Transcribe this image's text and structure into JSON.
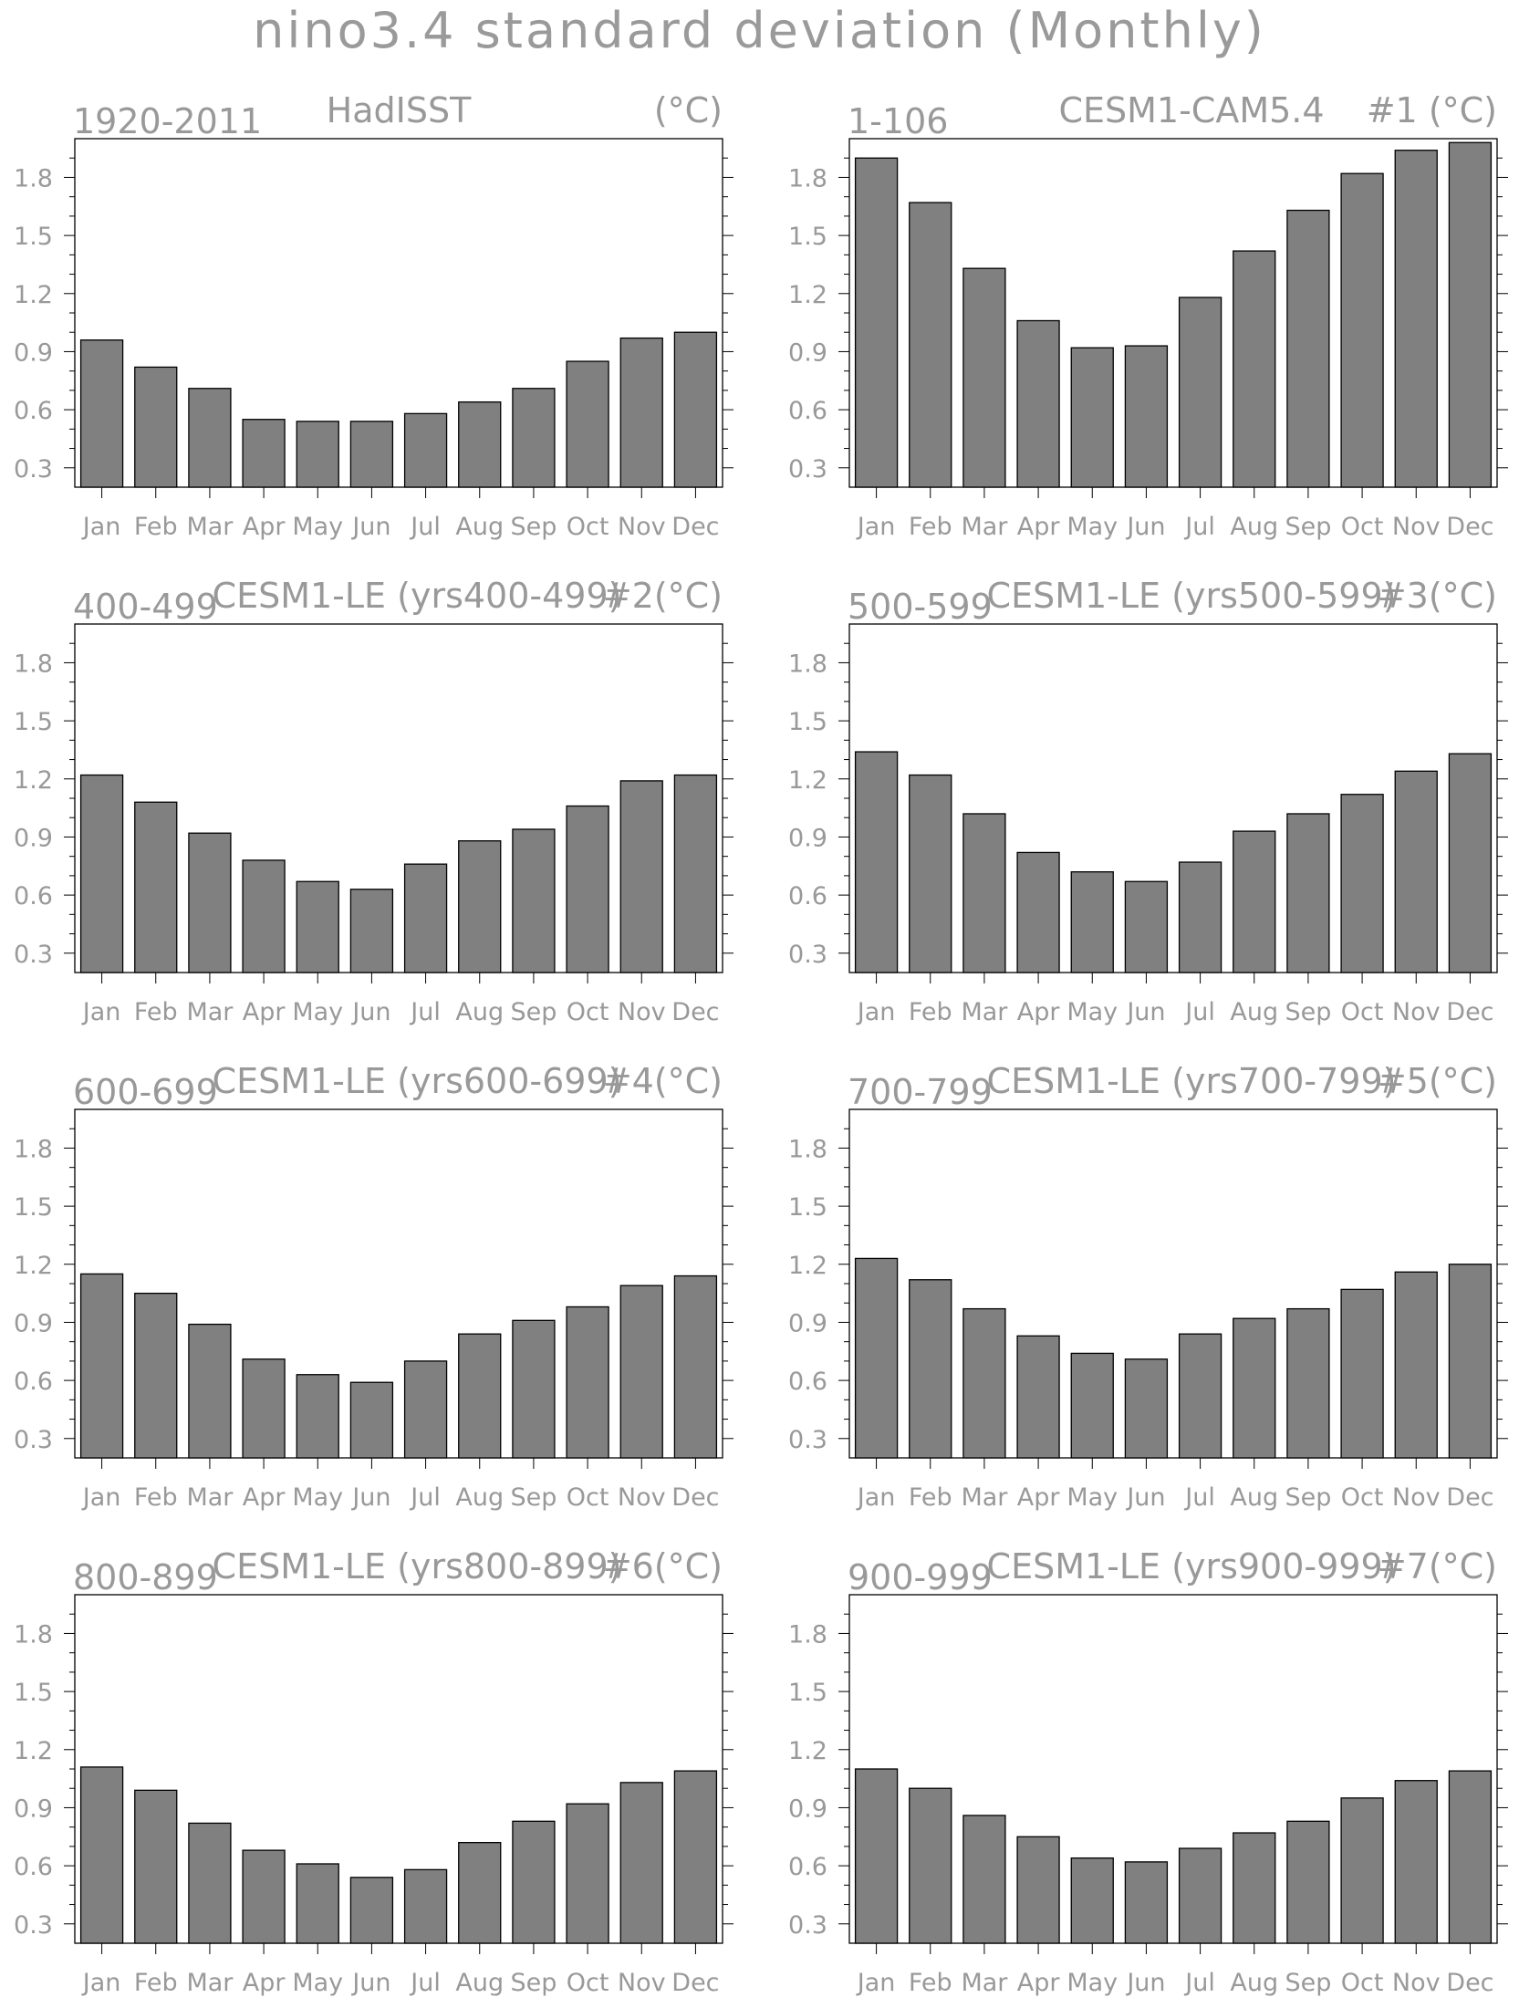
{
  "title": "nino3.4 standard deviation (Monthly)",
  "colors": {
    "bar_fill": "#808080",
    "bar_stroke": "#000000",
    "text": "#999999",
    "axis": "#000000"
  },
  "chart_data": [
    {
      "type": "bar",
      "left_label": "1920-2011",
      "center_label": "HadISST",
      "right_label": "(°C)",
      "categories": [
        "Jan",
        "Feb",
        "Mar",
        "Apr",
        "May",
        "Jun",
        "Jul",
        "Aug",
        "Sep",
        "Oct",
        "Nov",
        "Dec"
      ],
      "values": [
        0.96,
        0.82,
        0.71,
        0.55,
        0.54,
        0.54,
        0.58,
        0.64,
        0.71,
        0.85,
        0.97,
        1.0
      ],
      "yticks": [
        0.3,
        0.6,
        0.9,
        1.2,
        1.5,
        1.8
      ],
      "ylim": [
        0.2,
        2.0
      ]
    },
    {
      "type": "bar",
      "left_label": "1-106",
      "center_label": "CESM1-CAM5.4",
      "right_label": "#1   (°C)",
      "categories": [
        "Jan",
        "Feb",
        "Mar",
        "Apr",
        "May",
        "Jun",
        "Jul",
        "Aug",
        "Sep",
        "Oct",
        "Nov",
        "Dec"
      ],
      "values": [
        1.9,
        1.67,
        1.33,
        1.06,
        0.92,
        0.93,
        1.18,
        1.42,
        1.63,
        1.82,
        1.94,
        1.98
      ],
      "yticks": [
        0.3,
        0.6,
        0.9,
        1.2,
        1.5,
        1.8
      ],
      "ylim": [
        0.2,
        2.0
      ]
    },
    {
      "type": "bar",
      "left_label": "400-499",
      "center_label": "CESM1-LE (yrs400-499)",
      "right_label": "#2(°C)",
      "categories": [
        "Jan",
        "Feb",
        "Mar",
        "Apr",
        "May",
        "Jun",
        "Jul",
        "Aug",
        "Sep",
        "Oct",
        "Nov",
        "Dec"
      ],
      "values": [
        1.22,
        1.08,
        0.92,
        0.78,
        0.67,
        0.63,
        0.76,
        0.88,
        0.94,
        1.06,
        1.19,
        1.22
      ],
      "yticks": [
        0.3,
        0.6,
        0.9,
        1.2,
        1.5,
        1.8
      ],
      "ylim": [
        0.2,
        2.0
      ]
    },
    {
      "type": "bar",
      "left_label": "500-599",
      "center_label": "CESM1-LE (yrs500-599)",
      "right_label": "#3(°C)",
      "categories": [
        "Jan",
        "Feb",
        "Mar",
        "Apr",
        "May",
        "Jun",
        "Jul",
        "Aug",
        "Sep",
        "Oct",
        "Nov",
        "Dec"
      ],
      "values": [
        1.34,
        1.22,
        1.02,
        0.82,
        0.72,
        0.67,
        0.77,
        0.93,
        1.02,
        1.12,
        1.24,
        1.33
      ],
      "yticks": [
        0.3,
        0.6,
        0.9,
        1.2,
        1.5,
        1.8
      ],
      "ylim": [
        0.2,
        2.0
      ]
    },
    {
      "type": "bar",
      "left_label": "600-699",
      "center_label": "CESM1-LE (yrs600-699)",
      "right_label": "#4(°C)",
      "categories": [
        "Jan",
        "Feb",
        "Mar",
        "Apr",
        "May",
        "Jun",
        "Jul",
        "Aug",
        "Sep",
        "Oct",
        "Nov",
        "Dec"
      ],
      "values": [
        1.15,
        1.05,
        0.89,
        0.71,
        0.63,
        0.59,
        0.7,
        0.84,
        0.91,
        0.98,
        1.09,
        1.14
      ],
      "yticks": [
        0.3,
        0.6,
        0.9,
        1.2,
        1.5,
        1.8
      ],
      "ylim": [
        0.2,
        2.0
      ]
    },
    {
      "type": "bar",
      "left_label": "700-799",
      "center_label": "CESM1-LE (yrs700-799)",
      "right_label": "#5(°C)",
      "categories": [
        "Jan",
        "Feb",
        "Mar",
        "Apr",
        "May",
        "Jun",
        "Jul",
        "Aug",
        "Sep",
        "Oct",
        "Nov",
        "Dec"
      ],
      "values": [
        1.23,
        1.12,
        0.97,
        0.83,
        0.74,
        0.71,
        0.84,
        0.92,
        0.97,
        1.07,
        1.16,
        1.2
      ],
      "yticks": [
        0.3,
        0.6,
        0.9,
        1.2,
        1.5,
        1.8
      ],
      "ylim": [
        0.2,
        2.0
      ]
    },
    {
      "type": "bar",
      "left_label": "800-899",
      "center_label": "CESM1-LE (yrs800-899)",
      "right_label": "#6(°C)",
      "categories": [
        "Jan",
        "Feb",
        "Mar",
        "Apr",
        "May",
        "Jun",
        "Jul",
        "Aug",
        "Sep",
        "Oct",
        "Nov",
        "Dec"
      ],
      "values": [
        1.11,
        0.99,
        0.82,
        0.68,
        0.61,
        0.54,
        0.58,
        0.72,
        0.83,
        0.92,
        1.03,
        1.09
      ],
      "yticks": [
        0.3,
        0.6,
        0.9,
        1.2,
        1.5,
        1.8
      ],
      "ylim": [
        0.2,
        2.0
      ]
    },
    {
      "type": "bar",
      "left_label": "900-999",
      "center_label": "CESM1-LE (yrs900-999)",
      "right_label": "#7(°C)",
      "categories": [
        "Jan",
        "Feb",
        "Mar",
        "Apr",
        "May",
        "Jun",
        "Jul",
        "Aug",
        "Sep",
        "Oct",
        "Nov",
        "Dec"
      ],
      "values": [
        1.1,
        1.0,
        0.86,
        0.75,
        0.64,
        0.62,
        0.69,
        0.77,
        0.83,
        0.95,
        1.04,
        1.09
      ],
      "yticks": [
        0.3,
        0.6,
        0.9,
        1.2,
        1.5,
        1.8
      ],
      "ylim": [
        0.2,
        2.0
      ]
    }
  ]
}
